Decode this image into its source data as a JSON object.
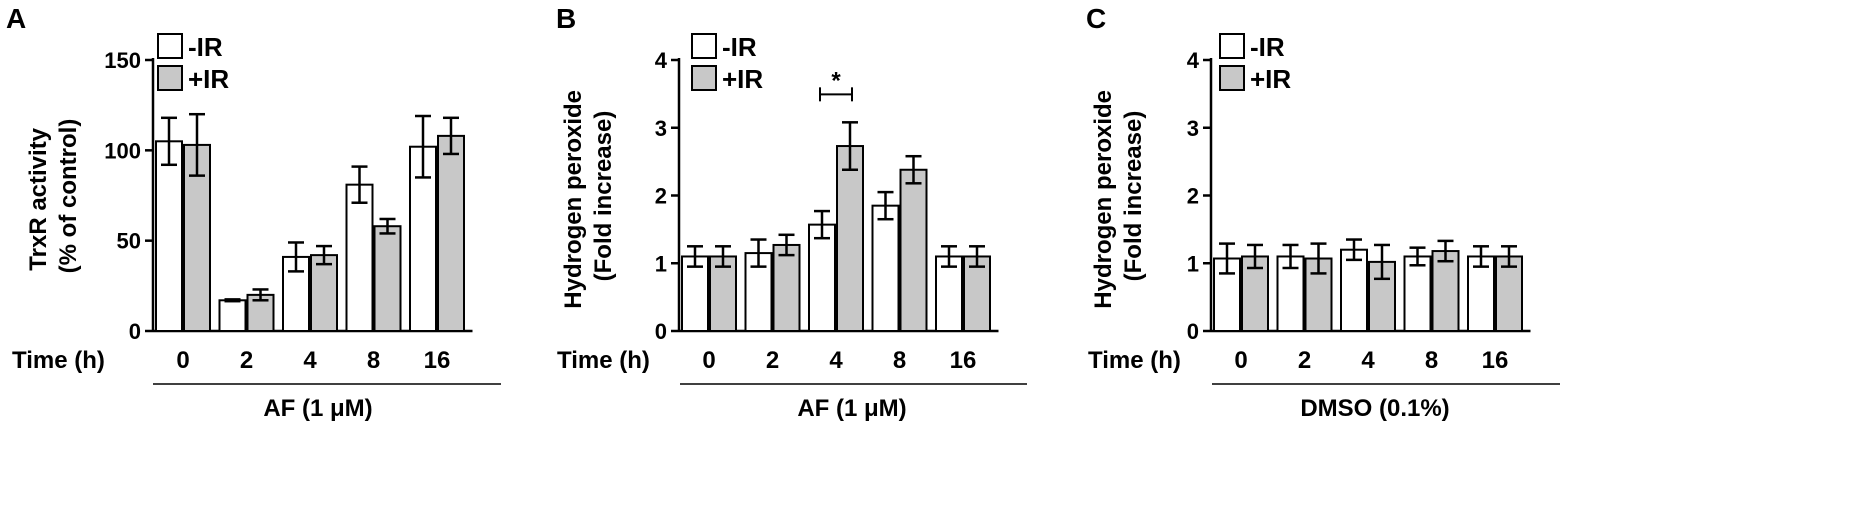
{
  "chart_data": [
    {
      "panel_letter": "A",
      "type": "bar",
      "ylabel_lines": [
        "TrxR activity",
        "(% of control)"
      ],
      "xlabel_prefix": "Time (h)",
      "categories": [
        "0",
        "2",
        "4",
        "8",
        "16"
      ],
      "yticks": [
        "0",
        "50",
        "100",
        "150"
      ],
      "ylim": [
        0,
        150
      ],
      "series": [
        {
          "name": "-IR",
          "values": [
            105,
            17,
            41,
            81,
            102
          ],
          "errors": [
            13,
            0.5,
            8,
            10,
            17
          ],
          "color": "#ffffff"
        },
        {
          "name": "+IR",
          "values": [
            103,
            20,
            42,
            58,
            108
          ],
          "errors": [
            17,
            3,
            5,
            4,
            10
          ],
          "color": "#c8c8c8"
        }
      ],
      "treatment": "AF (1 μM)",
      "legend_position": "top-center",
      "significance": []
    },
    {
      "panel_letter": "B",
      "type": "bar",
      "ylabel_lines": [
        "Hydrogen peroxide",
        "(Fold increase)"
      ],
      "xlabel_prefix": "Time (h)",
      "categories": [
        "0",
        "2",
        "4",
        "8",
        "16"
      ],
      "yticks": [
        "0",
        "1",
        "2",
        "3",
        "4"
      ],
      "ylim": [
        0,
        4
      ],
      "series": [
        {
          "name": "-IR",
          "values": [
            1.1,
            1.15,
            1.57,
            1.85,
            1.1
          ],
          "errors": [
            0.15,
            0.2,
            0.2,
            0.2,
            0.15
          ],
          "color": "#ffffff"
        },
        {
          "name": "+IR",
          "values": [
            1.1,
            1.27,
            2.73,
            2.38,
            1.1
          ],
          "errors": [
            0.15,
            0.15,
            0.35,
            0.2,
            0.15
          ],
          "color": "#c8c8c8"
        }
      ],
      "treatment": "AF (1 μM)",
      "legend_position": "top-left",
      "significance": [
        {
          "category_index": 2,
          "label": "*"
        }
      ]
    },
    {
      "panel_letter": "C",
      "type": "bar",
      "ylabel_lines": [
        "Hydrogen peroxide",
        "(Fold increase)"
      ],
      "xlabel_prefix": "Time (h)",
      "categories": [
        "0",
        "2",
        "4",
        "8",
        "16"
      ],
      "yticks": [
        "0",
        "1",
        "2",
        "3",
        "4"
      ],
      "ylim": [
        0,
        4
      ],
      "series": [
        {
          "name": "-IR",
          "values": [
            1.07,
            1.1,
            1.2,
            1.1,
            1.1
          ],
          "errors": [
            0.22,
            0.17,
            0.15,
            0.13,
            0.15
          ],
          "color": "#ffffff"
        },
        {
          "name": "+IR",
          "values": [
            1.1,
            1.07,
            1.02,
            1.18,
            1.1
          ],
          "errors": [
            0.17,
            0.22,
            0.25,
            0.15,
            0.15
          ],
          "color": "#c8c8c8"
        }
      ],
      "treatment": "DMSO (0.1%)",
      "legend_position": "top-left",
      "significance": []
    }
  ]
}
